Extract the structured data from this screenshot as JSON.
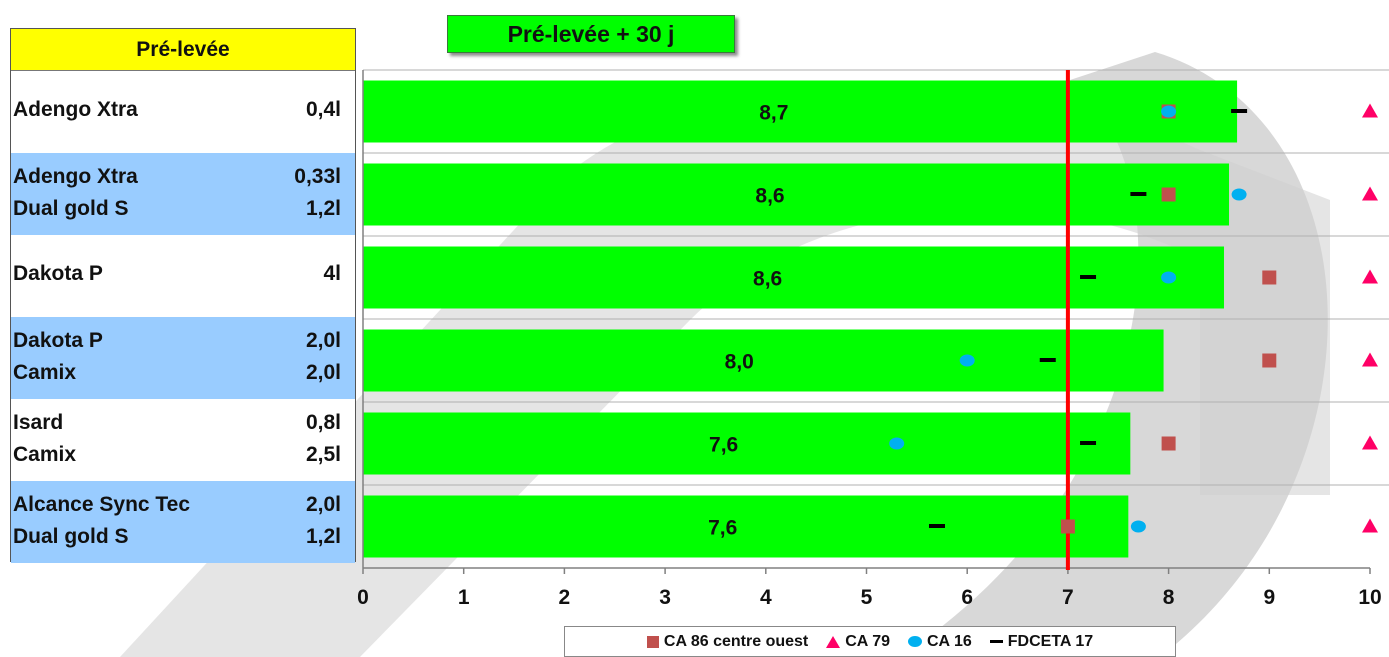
{
  "table": {
    "header": "Pré-levée",
    "highlight_color": "#99ccff",
    "rows": [
      {
        "lines": [
          {
            "name": "Adengo Xtra",
            "dose": "0,4l"
          }
        ],
        "highlight": false
      },
      {
        "lines": [
          {
            "name": "Adengo Xtra",
            "dose": "0,33l"
          },
          {
            "name": "Dual gold S",
            "dose": "1,2l"
          }
        ],
        "highlight": true
      },
      {
        "lines": [
          {
            "name": "Dakota P",
            "dose": "4l"
          }
        ],
        "highlight": false
      },
      {
        "lines": [
          {
            "name": "Dakota P",
            "dose": "2,0l"
          },
          {
            "name": "Camix",
            "dose": "2,0l"
          }
        ],
        "highlight": true
      },
      {
        "lines": [
          {
            "name": "Isard",
            "dose": "0,8l"
          },
          {
            "name": "Camix",
            "dose": "2,5l"
          }
        ],
        "highlight": false
      },
      {
        "lines": [
          {
            "name": "Alcance Sync Tec",
            "dose": "2,0l"
          },
          {
            "name": "Dual gold S",
            "dose": "1,2l"
          }
        ],
        "highlight": true
      }
    ]
  },
  "chart_title": "Pré-levée + 30 j",
  "chart_data": {
    "type": "bar",
    "orientation": "horizontal",
    "bar_color": "#00ff00",
    "bar_labels": [
      "8,7",
      "8,6",
      "8,6",
      "8,0",
      "7,6",
      "7,6"
    ],
    "values": [
      8.68,
      8.6,
      8.55,
      7.95,
      7.62,
      7.6
    ],
    "xlim": [
      0,
      10
    ],
    "xticks": [
      "0",
      "1",
      "2",
      "3",
      "4",
      "5",
      "6",
      "7",
      "8",
      "9",
      "10"
    ],
    "reference_line": {
      "x": 7,
      "color": "#ff0000"
    },
    "grid": "horizontal row separators",
    "series": [
      {
        "name": "CA 86 centre ouest",
        "marker": "square",
        "color": "#c0504d",
        "values": [
          8,
          8,
          9,
          9,
          8,
          7
        ]
      },
      {
        "name": "CA 79",
        "marker": "triangle",
        "color": "#ff0066",
        "values": [
          10,
          10,
          10,
          10,
          10,
          10
        ]
      },
      {
        "name": "CA 16",
        "marker": "circle",
        "color": "#00b0f0",
        "values": [
          8,
          8.7,
          8,
          6,
          5.3,
          7.7
        ]
      },
      {
        "name": "FDCETA 17",
        "marker": "dash",
        "color": "#000000",
        "values": [
          8.7,
          7.7,
          7.2,
          6.8,
          7.2,
          5.7
        ]
      }
    ],
    "legend_position": "bottom"
  }
}
